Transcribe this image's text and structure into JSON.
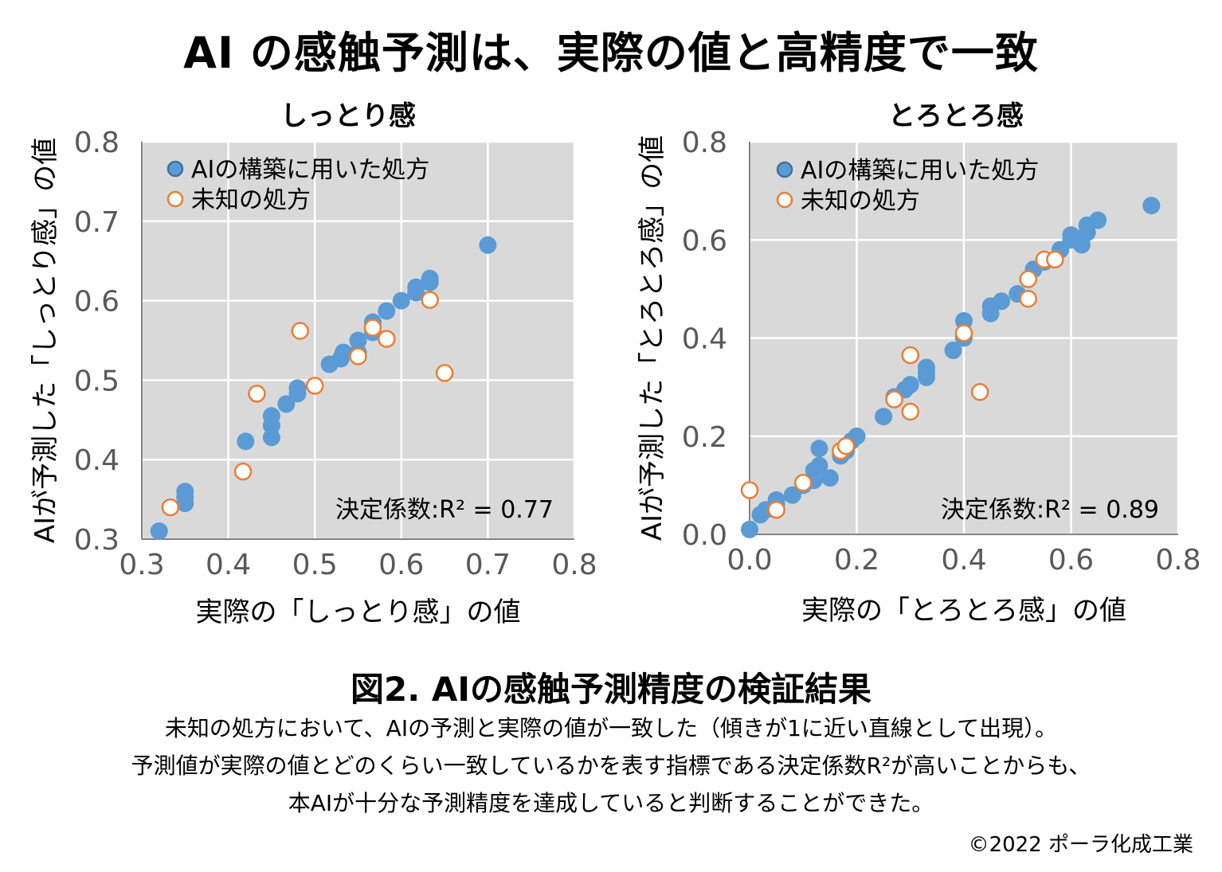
{
  "page": {
    "title": "AI の感触予測は、実際の値と高精度で一致",
    "figure_title": "図2. AIの感触予測精度の検証結果",
    "caption_lines": [
      "未知の処方において、AIの予測と実際の値が一致した（傾きが1に近い直線として出現）。",
      "予測値が実際の値とどのくらい一致しているかを表す指標である決定係数R²が高いことからも、",
      "本AIが十分な予測精度を達成していると判断することができた。"
    ],
    "copyright": "©2022 ポーラ化成工業"
  },
  "colors": {
    "known": "#5b9bd5",
    "unknown_stroke": "#ed7d31",
    "plot_bg": "#d9d9d9",
    "grid": "#ffffff"
  },
  "chart_data": [
    {
      "type": "scatter",
      "title": "しっとり感",
      "xlabel": "実際の「しっとり感」の値",
      "ylabel": "AIが予測した「しっとり感」の値",
      "xlim": [
        0.3,
        0.8
      ],
      "ylim": [
        0.3,
        0.8
      ],
      "xticks": [
        "0.3",
        "0.4",
        "0.5",
        "0.6",
        "0.7",
        "0.8"
      ],
      "yticks": [
        "0.3",
        "0.4",
        "0.5",
        "0.6",
        "0.7",
        "0.8"
      ],
      "grid": true,
      "legend_position": "top-left",
      "annotation": "決定係数:R² = 0.77",
      "series": [
        {
          "name": "AIの構築に用いた処方",
          "marker": "filled",
          "points": [
            [
              0.32,
              0.31
            ],
            [
              0.35,
              0.345
            ],
            [
              0.35,
              0.353
            ],
            [
              0.35,
              0.36
            ],
            [
              0.42,
              0.423
            ],
            [
              0.45,
              0.428
            ],
            [
              0.45,
              0.443
            ],
            [
              0.45,
              0.455
            ],
            [
              0.467,
              0.47
            ],
            [
              0.48,
              0.483
            ],
            [
              0.48,
              0.49
            ],
            [
              0.517,
              0.52
            ],
            [
              0.53,
              0.527
            ],
            [
              0.533,
              0.535
            ],
            [
              0.55,
              0.535
            ],
            [
              0.55,
              0.55
            ],
            [
              0.567,
              0.56
            ],
            [
              0.567,
              0.573
            ],
            [
              0.583,
              0.587
            ],
            [
              0.6,
              0.6
            ],
            [
              0.617,
              0.61
            ],
            [
              0.617,
              0.617
            ],
            [
              0.633,
              0.623
            ],
            [
              0.633,
              0.628
            ],
            [
              0.7,
              0.67
            ]
          ]
        },
        {
          "name": "未知の処方",
          "marker": "open",
          "points": [
            [
              0.333,
              0.34
            ],
            [
              0.417,
              0.385
            ],
            [
              0.433,
              0.483
            ],
            [
              0.483,
              0.562
            ],
            [
              0.5,
              0.493
            ],
            [
              0.55,
              0.53
            ],
            [
              0.567,
              0.566
            ],
            [
              0.583,
              0.552
            ],
            [
              0.633,
              0.601
            ],
            [
              0.65,
              0.509
            ]
          ]
        }
      ]
    },
    {
      "type": "scatter",
      "title": "とろとろ感",
      "xlabel": "実際の「とろとろ感」の値",
      "ylabel": "AIが予測した「とろとろ感」の値",
      "xlim": [
        0.0,
        0.8
      ],
      "ylim": [
        0.0,
        0.8
      ],
      "xticks": [
        "0.0",
        "0.2",
        "0.4",
        "0.6",
        "0.8"
      ],
      "yticks": [
        "0.0",
        "0.2",
        "0.4",
        "0.6",
        "0.8"
      ],
      "grid": true,
      "legend_position": "top-left",
      "annotation": "決定係数:R² = 0.89",
      "series": [
        {
          "name": "AIの構築に用いた処方",
          "marker": "filled",
          "points": [
            [
              0.0,
              0.01
            ],
            [
              0.02,
              0.04
            ],
            [
              0.03,
              0.05
            ],
            [
              0.05,
              0.06
            ],
            [
              0.05,
              0.07
            ],
            [
              0.08,
              0.08
            ],
            [
              0.1,
              0.1
            ],
            [
              0.12,
              0.11
            ],
            [
              0.12,
              0.13
            ],
            [
              0.13,
              0.14
            ],
            [
              0.13,
              0.175
            ],
            [
              0.15,
              0.115
            ],
            [
              0.17,
              0.16
            ],
            [
              0.18,
              0.17
            ],
            [
              0.19,
              0.19
            ],
            [
              0.2,
              0.2
            ],
            [
              0.25,
              0.24
            ],
            [
              0.27,
              0.28
            ],
            [
              0.29,
              0.295
            ],
            [
              0.3,
              0.305
            ],
            [
              0.33,
              0.32
            ],
            [
              0.33,
              0.33
            ],
            [
              0.33,
              0.34
            ],
            [
              0.38,
              0.375
            ],
            [
              0.4,
              0.4
            ],
            [
              0.4,
              0.435
            ],
            [
              0.45,
              0.45
            ],
            [
              0.45,
              0.465
            ],
            [
              0.47,
              0.475
            ],
            [
              0.5,
              0.49
            ],
            [
              0.52,
              0.52
            ],
            [
              0.53,
              0.54
            ],
            [
              0.55,
              0.555
            ],
            [
              0.58,
              0.58
            ],
            [
              0.6,
              0.6
            ],
            [
              0.6,
              0.61
            ],
            [
              0.62,
              0.59
            ],
            [
              0.63,
              0.615
            ],
            [
              0.63,
              0.63
            ],
            [
              0.65,
              0.64
            ],
            [
              0.75,
              0.67
            ]
          ]
        },
        {
          "name": "未知の処方",
          "marker": "open",
          "points": [
            [
              0.0,
              0.09
            ],
            [
              0.05,
              0.05
            ],
            [
              0.1,
              0.105
            ],
            [
              0.17,
              0.17
            ],
            [
              0.18,
              0.18
            ],
            [
              0.27,
              0.275
            ],
            [
              0.3,
              0.25
            ],
            [
              0.3,
              0.365
            ],
            [
              0.4,
              0.41
            ],
            [
              0.43,
              0.29
            ],
            [
              0.52,
              0.48
            ],
            [
              0.52,
              0.52
            ],
            [
              0.55,
              0.56
            ],
            [
              0.57,
              0.56
            ]
          ]
        }
      ]
    }
  ]
}
